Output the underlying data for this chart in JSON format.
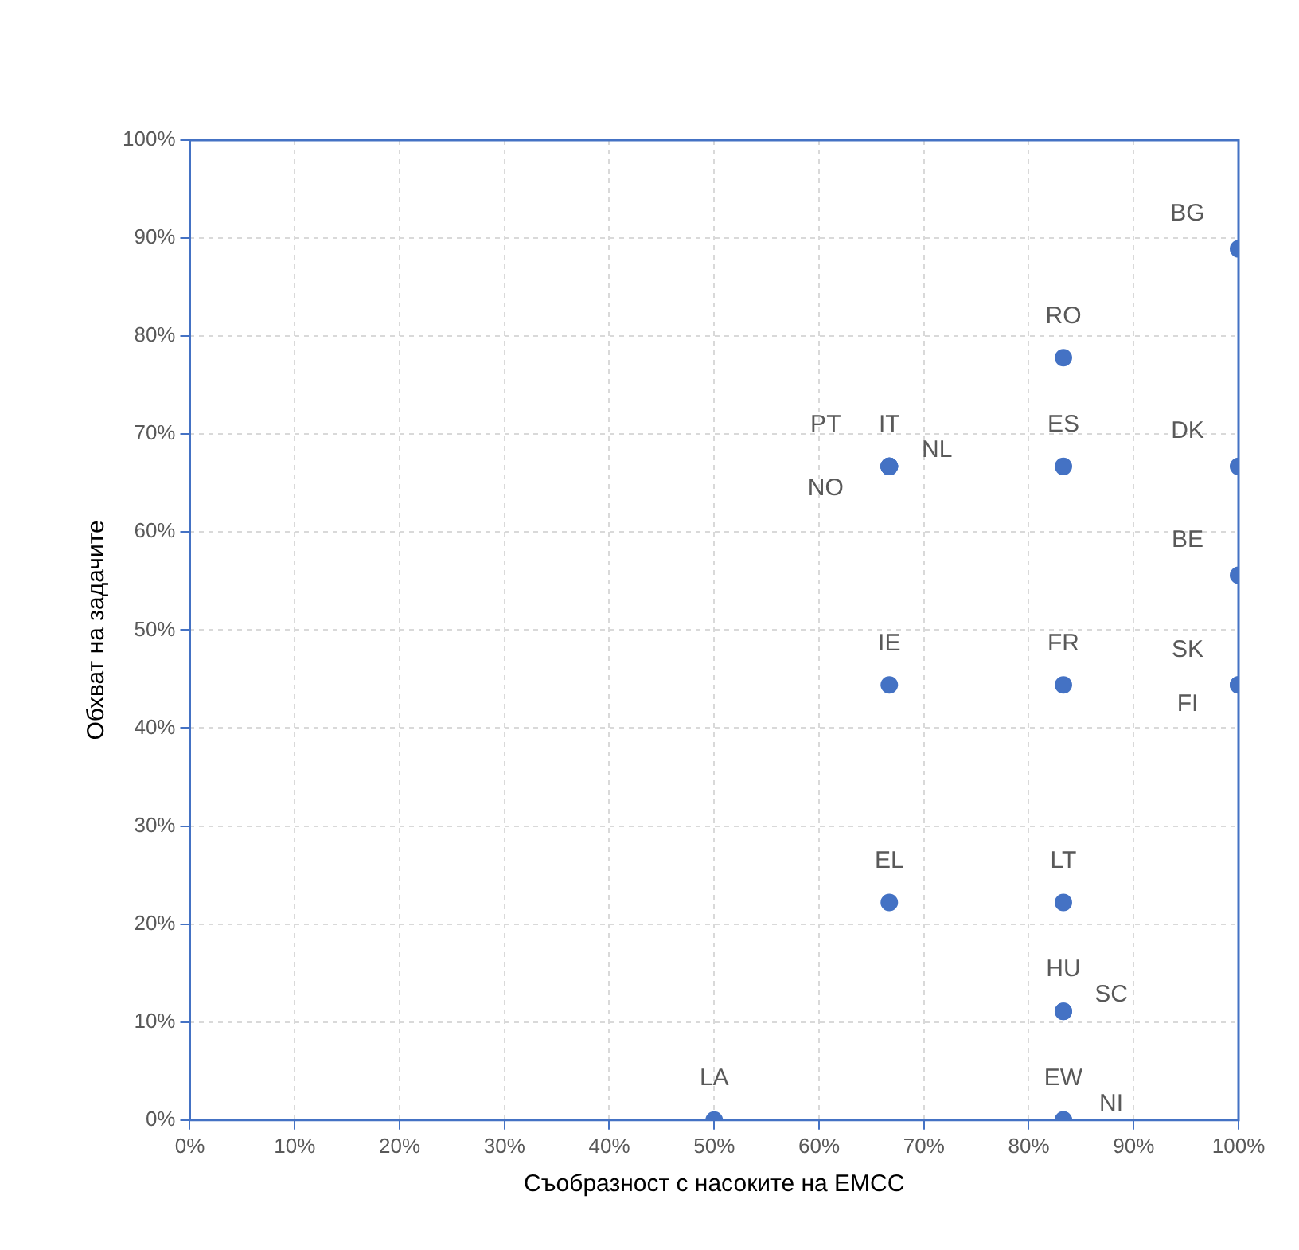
{
  "chart_data": {
    "type": "scatter",
    "xlabel": "Съобразност с насоките на ЕМСС",
    "ylabel": "Обхват на задачите",
    "series": [
      {
        "color": "#4472c4",
        "x": [
          100,
          83.3,
          66.7,
          66.7,
          66.7,
          66.7,
          83.3,
          100,
          100,
          66.7,
          83.3,
          100,
          100,
          66.7,
          83.3,
          83.3,
          83.3,
          50,
          83.3,
          83.3
        ],
        "values": [
          88.9,
          77.8,
          66.7,
          66.7,
          66.7,
          66.7,
          66.7,
          66.7,
          55.6,
          44.4,
          44.4,
          44.4,
          44.4,
          22.2,
          22.2,
          11.1,
          11.1,
          0,
          0,
          0
        ],
        "value_labels": [
          "BG",
          "RO",
          "IT",
          "NL",
          "PT",
          "NO",
          "ES",
          "DK",
          "BE",
          "IE",
          "FR",
          "SK",
          "FI",
          "EL",
          "LT",
          "HU",
          "SC",
          "LA",
          "EW",
          "NI"
        ]
      }
    ],
    "xlim": [
      0,
      100
    ],
    "ylim": [
      0,
      100
    ],
    "xticks": [
      {
        "value": 0,
        "label": "0%"
      },
      {
        "value": 10,
        "label": "10%"
      },
      {
        "value": 20,
        "label": "20%"
      },
      {
        "value": 30,
        "label": "30%"
      },
      {
        "value": 40,
        "label": "40%"
      },
      {
        "value": 50,
        "label": "50%"
      },
      {
        "value": 60,
        "label": "60%"
      },
      {
        "value": 70,
        "label": "70%"
      },
      {
        "value": 80,
        "label": "80%"
      },
      {
        "value": 90,
        "label": "90%"
      },
      {
        "value": 100,
        "label": "100%"
      }
    ],
    "yticks": [
      {
        "value": 0,
        "label": "0%"
      },
      {
        "value": 10,
        "label": "10%"
      },
      {
        "value": 20,
        "label": "20%"
      },
      {
        "value": 30,
        "label": "30%"
      },
      {
        "value": 40,
        "label": "40%"
      },
      {
        "value": 50,
        "label": "50%"
      },
      {
        "value": 60,
        "label": "60%"
      },
      {
        "value": 70,
        "label": "70%"
      },
      {
        "value": 80,
        "label": "80%"
      },
      {
        "value": 90,
        "label": "90%"
      },
      {
        "value": 100,
        "label": "100%"
      }
    ],
    "grid": true,
    "marker": "circle",
    "legend": false
  }
}
